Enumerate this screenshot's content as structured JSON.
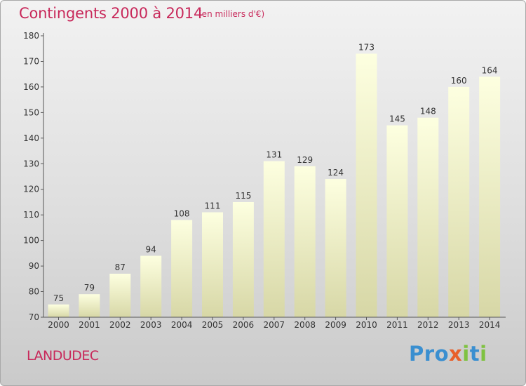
{
  "header": {
    "title": "Contingents 2000 à 2014",
    "subtitle": "(en milliers d'€)"
  },
  "footer": {
    "commune": "LANDUDEC",
    "logo_text": "Proxiti"
  },
  "colors": {
    "title": "#c8285a",
    "bar_top": "#fdffe0",
    "bar_bottom": "#d7d7a6",
    "axis": "#555555",
    "logo_main": "#3a8fd0",
    "logo_x": "#e8602a",
    "logo_i": "#7fc241"
  },
  "chart_data": {
    "type": "bar",
    "title": "Contingents 2000 à 2014",
    "subtitle": "(en milliers d'€)",
    "categories": [
      "2000",
      "2001",
      "2002",
      "2003",
      "2004",
      "2005",
      "2006",
      "2007",
      "2008",
      "2009",
      "2010",
      "2011",
      "2012",
      "2013",
      "2014"
    ],
    "values": [
      75,
      79,
      87,
      94,
      108,
      111,
      115,
      131,
      129,
      124,
      173,
      145,
      148,
      160,
      164
    ],
    "ylim": [
      70,
      180
    ],
    "yticks": [
      70,
      80,
      90,
      100,
      110,
      120,
      130,
      140,
      150,
      160,
      170,
      180
    ],
    "grid": false,
    "data_labels": true
  }
}
